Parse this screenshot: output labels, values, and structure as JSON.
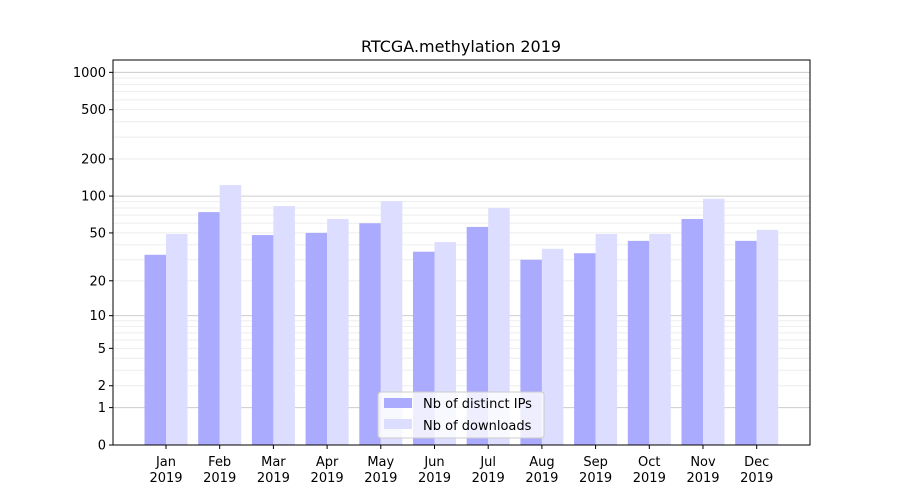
{
  "chart_data": {
    "type": "bar",
    "title": "RTCGA.methylation 2019",
    "xlabel": "",
    "ylabel": "",
    "y_scale": "log(1+y)",
    "ylim": [
      0,
      1150
    ],
    "yticks": [
      0,
      1,
      2,
      5,
      10,
      20,
      50,
      100,
      200,
      500,
      1000
    ],
    "grid": true,
    "legend_position": "bottom-center",
    "categories": [
      "Jan\n2019",
      "Feb\n2019",
      "Mar\n2019",
      "Apr\n2019",
      "May\n2019",
      "Jun\n2019",
      "Jul\n2019",
      "Aug\n2019",
      "Sep\n2019",
      "Oct\n2019",
      "Nov\n2019",
      "Dec\n2019"
    ],
    "series": [
      {
        "name": "Nb of distinct IPs",
        "color": "#aaaaff",
        "values": [
          33,
          74,
          48,
          50,
          60,
          35,
          56,
          30,
          34,
          43,
          65,
          43
        ]
      },
      {
        "name": "Nb of downloads",
        "color": "#ddddff",
        "values": [
          49,
          123,
          83,
          65,
          91,
          42,
          80,
          37,
          49,
          49,
          95,
          53
        ]
      }
    ]
  }
}
